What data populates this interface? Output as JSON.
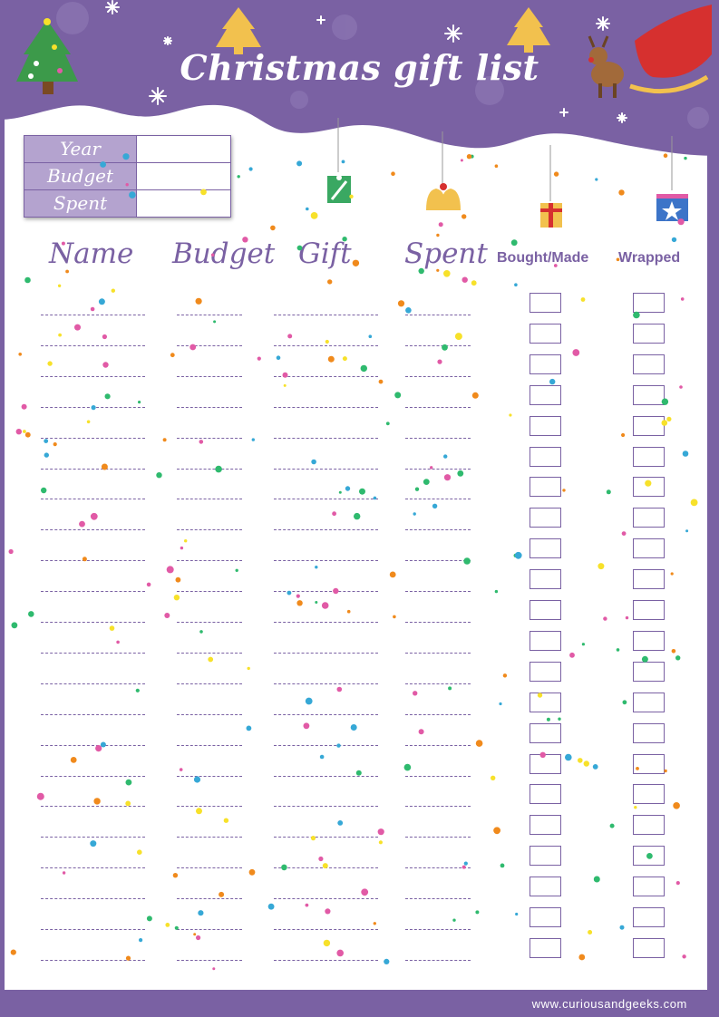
{
  "title": "Christmas gift list",
  "info": [
    {
      "label": "Year",
      "value": ""
    },
    {
      "label": "Budget",
      "value": ""
    },
    {
      "label": "Spent",
      "value": ""
    }
  ],
  "columns": {
    "name": "Name",
    "budget": "Budget",
    "gift": "Gift",
    "spent": "Spent",
    "bought": "Bought/Made",
    "wrapped": "Wrapped"
  },
  "footer": "www.curiousandgeeks.com",
  "row_count": 22,
  "colors": {
    "purple": "#7a61a3",
    "lavender": "#b4a3cf",
    "confetti": [
      "#e15aa6",
      "#f08a1c",
      "#f7e12a",
      "#2fba6e",
      "#36a8d6"
    ]
  },
  "icons": [
    "christmas-tree-icon",
    "snowflake-icon",
    "star-icon",
    "gift-icon",
    "bells-icon",
    "reindeer-sleigh-icon"
  ]
}
